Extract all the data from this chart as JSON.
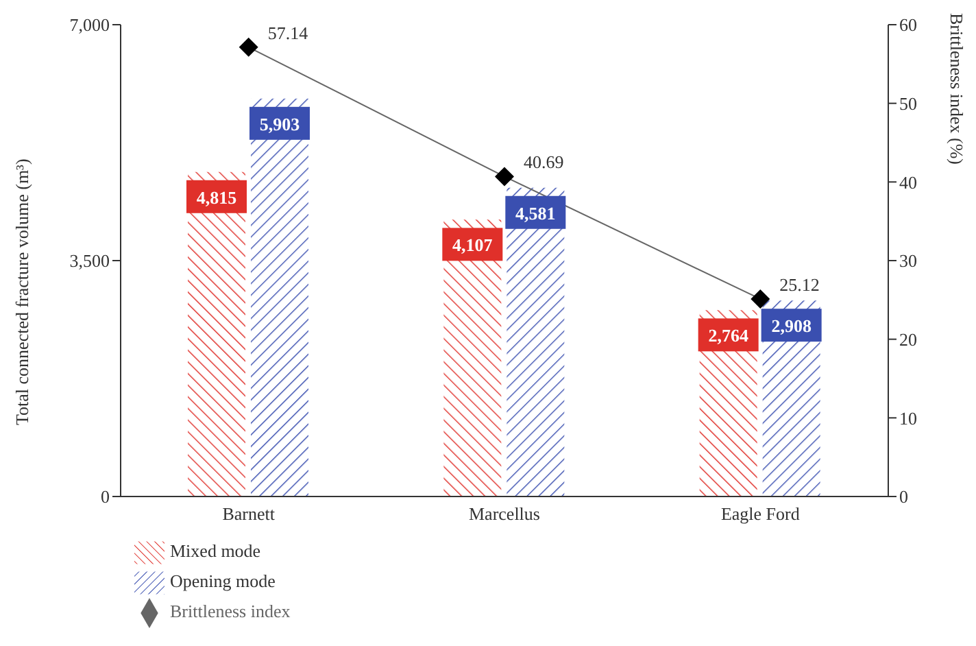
{
  "chart_data": {
    "type": "bar",
    "categories": [
      "Barnett",
      "Marcellus",
      "Eagle Ford"
    ],
    "ylabel": "Total connected fracture volume (m³)",
    "y2label": "Brittleness index (%)",
    "series": [
      {
        "name": "Mixed mode",
        "color": "#e0302a",
        "values": [
          4815,
          4107,
          2764
        ],
        "value_labels": [
          "4,815",
          "4,107",
          "2,764"
        ]
      },
      {
        "name": "Opening mode",
        "color": "#3a4fb0",
        "values": [
          5903,
          4581,
          2908
        ],
        "value_labels": [
          "5,903",
          "4,581",
          "2,908"
        ]
      },
      {
        "name": "Brittleness index",
        "type": "line",
        "axis": "y2",
        "color": "#000000",
        "marker": "diamond",
        "values": [
          57.14,
          40.69,
          25.12
        ],
        "value_labels": [
          "57.14",
          "40.69",
          "25.12"
        ]
      }
    ],
    "ylim": [
      0,
      7000
    ],
    "yticks": [
      {
        "value": 0,
        "label": "0"
      },
      {
        "value": 3500,
        "label": "3,500"
      },
      {
        "value": 7000,
        "label": "7,000"
      }
    ],
    "y2lim": [
      0,
      60
    ],
    "y2ticks": [
      0,
      10,
      20,
      30,
      40,
      50,
      60
    ],
    "legend": "bottom left"
  }
}
